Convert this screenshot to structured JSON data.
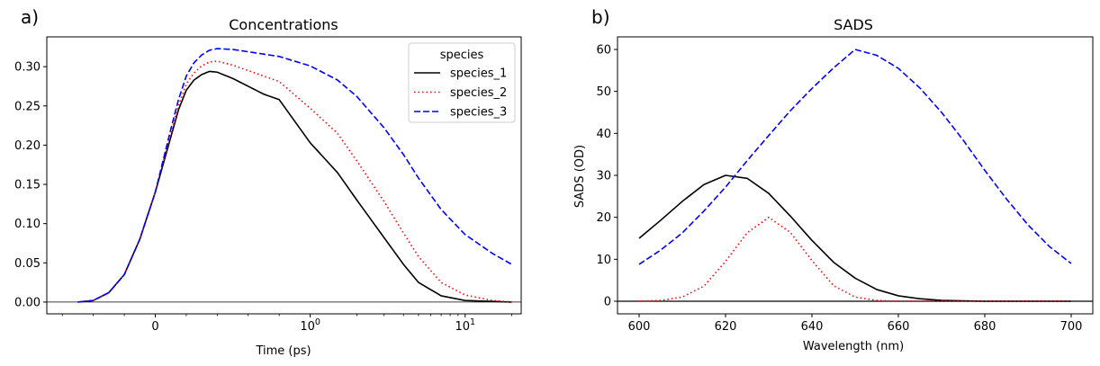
{
  "chart_data": [
    {
      "panel_label": "a)",
      "type": "line",
      "title": "Concentrations",
      "xlabel": "Time (ps)",
      "ylabel": "",
      "xscale": "symlog",
      "xlim": [
        -0.7,
        23
      ],
      "ylim": [
        -0.015,
        0.338
      ],
      "xticks": [
        {
          "value": 0,
          "label": "0"
        },
        {
          "value": 1,
          "label": "10",
          "sup": "0"
        },
        {
          "value": 10,
          "label": "10",
          "sup": "1"
        }
      ],
      "yticks": [
        0.0,
        0.05,
        0.1,
        0.15,
        0.2,
        0.25,
        0.3
      ],
      "ytick_labels": [
        "0.00",
        "0.05",
        "0.10",
        "0.15",
        "0.20",
        "0.25",
        "0.30"
      ],
      "grid": false,
      "zero_line": true,
      "legend": {
        "title": "species",
        "placement": "top-right"
      },
      "series": [
        {
          "name": "species_1",
          "color": "#000000",
          "linestyle": "solid",
          "points": [
            [
              -0.5,
              0.0
            ],
            [
              -0.4,
              0.002
            ],
            [
              -0.3,
              0.012
            ],
            [
              -0.2,
              0.035
            ],
            [
              -0.1,
              0.08
            ],
            [
              0.0,
              0.14
            ],
            [
              0.05,
              0.175
            ],
            [
              0.1,
              0.21
            ],
            [
              0.15,
              0.245
            ],
            [
              0.2,
              0.27
            ],
            [
              0.25,
              0.283
            ],
            [
              0.3,
              0.29
            ],
            [
              0.35,
              0.294
            ],
            [
              0.4,
              0.293
            ],
            [
              0.5,
              0.285
            ],
            [
              0.6,
              0.275
            ],
            [
              0.7,
              0.265
            ],
            [
              0.8,
              0.258
            ],
            [
              1.0,
              0.203
            ],
            [
              1.5,
              0.165
            ],
            [
              2.0,
              0.13
            ],
            [
              3.0,
              0.082
            ],
            [
              4.0,
              0.048
            ],
            [
              5.0,
              0.025
            ],
            [
              7.0,
              0.008
            ],
            [
              10.0,
              0.002
            ],
            [
              20.0,
              0.0
            ]
          ]
        },
        {
          "name": "species_2",
          "color": "#ff0000",
          "linestyle": "dotted",
          "points": [
            [
              -0.5,
              0.0
            ],
            [
              -0.4,
              0.002
            ],
            [
              -0.3,
              0.012
            ],
            [
              -0.2,
              0.035
            ],
            [
              -0.1,
              0.08
            ],
            [
              0.0,
              0.14
            ],
            [
              0.05,
              0.178
            ],
            [
              0.1,
              0.215
            ],
            [
              0.15,
              0.25
            ],
            [
              0.2,
              0.278
            ],
            [
              0.25,
              0.292
            ],
            [
              0.3,
              0.301
            ],
            [
              0.35,
              0.306
            ],
            [
              0.4,
              0.307
            ],
            [
              0.5,
              0.302
            ],
            [
              0.6,
              0.295
            ],
            [
              0.7,
              0.288
            ],
            [
              0.8,
              0.281
            ],
            [
              1.0,
              0.247
            ],
            [
              1.5,
              0.215
            ],
            [
              2.0,
              0.18
            ],
            [
              3.0,
              0.128
            ],
            [
              4.0,
              0.088
            ],
            [
              5.0,
              0.058
            ],
            [
              7.0,
              0.025
            ],
            [
              10.0,
              0.009
            ],
            [
              15.0,
              0.002
            ],
            [
              20.0,
              0.0
            ]
          ]
        },
        {
          "name": "species_3",
          "color": "#0000ff",
          "linestyle": "dashed",
          "points": [
            [
              -0.5,
              0.0
            ],
            [
              -0.4,
              0.002
            ],
            [
              -0.3,
              0.012
            ],
            [
              -0.2,
              0.035
            ],
            [
              -0.1,
              0.08
            ],
            [
              0.0,
              0.14
            ],
            [
              0.05,
              0.18
            ],
            [
              0.1,
              0.22
            ],
            [
              0.15,
              0.258
            ],
            [
              0.2,
              0.288
            ],
            [
              0.25,
              0.305
            ],
            [
              0.3,
              0.315
            ],
            [
              0.35,
              0.321
            ],
            [
              0.4,
              0.323
            ],
            [
              0.5,
              0.322
            ],
            [
              0.6,
              0.319
            ],
            [
              0.7,
              0.316
            ],
            [
              0.8,
              0.313
            ],
            [
              1.0,
              0.301
            ],
            [
              1.5,
              0.283
            ],
            [
              2.0,
              0.262
            ],
            [
              3.0,
              0.222
            ],
            [
              4.0,
              0.188
            ],
            [
              5.0,
              0.158
            ],
            [
              7.0,
              0.118
            ],
            [
              10.0,
              0.086
            ],
            [
              15.0,
              0.062
            ],
            [
              20.0,
              0.048
            ]
          ]
        }
      ]
    },
    {
      "panel_label": "b)",
      "type": "line",
      "title": "SADS",
      "xlabel": "Wavelength (nm)",
      "ylabel": "SADS (OD)",
      "xscale": "linear",
      "xlim": [
        595,
        705
      ],
      "ylim": [
        -3,
        63
      ],
      "xticks": [
        600,
        620,
        640,
        660,
        680,
        700
      ],
      "yticks": [
        0,
        10,
        20,
        30,
        40,
        50,
        60
      ],
      "grid": false,
      "zero_line": true,
      "series": [
        {
          "name": "species_1",
          "color": "#000000",
          "linestyle": "solid",
          "points": [
            [
              600,
              15.0
            ],
            [
              605,
              19.3
            ],
            [
              610,
              23.8
            ],
            [
              615,
              27.8
            ],
            [
              620,
              30.0
            ],
            [
              625,
              29.3
            ],
            [
              630,
              25.7
            ],
            [
              635,
              20.3
            ],
            [
              640,
              14.5
            ],
            [
              645,
              9.3
            ],
            [
              650,
              5.5
            ],
            [
              655,
              2.8
            ],
            [
              660,
              1.3
            ],
            [
              665,
              0.6
            ],
            [
              670,
              0.2
            ],
            [
              680,
              0.0
            ],
            [
              700,
              0.0
            ]
          ]
        },
        {
          "name": "species_2",
          "color": "#ff0000",
          "linestyle": "dotted",
          "points": [
            [
              600,
              0.0
            ],
            [
              605,
              0.2
            ],
            [
              610,
              1.0
            ],
            [
              615,
              3.6
            ],
            [
              620,
              9.5
            ],
            [
              625,
              16.3
            ],
            [
              630,
              20.0
            ],
            [
              635,
              16.4
            ],
            [
              640,
              9.7
            ],
            [
              645,
              3.7
            ],
            [
              650,
              1.0
            ],
            [
              655,
              0.2
            ],
            [
              660,
              0.0
            ],
            [
              700,
              0.0
            ]
          ]
        },
        {
          "name": "species_3",
          "color": "#0000ff",
          "linestyle": "dashed",
          "points": [
            [
              600,
              8.8
            ],
            [
              605,
              12.2
            ],
            [
              610,
              16.3
            ],
            [
              615,
              21.5
            ],
            [
              620,
              27.2
            ],
            [
              625,
              33.5
            ],
            [
              630,
              39.5
            ],
            [
              635,
              45.4
            ],
            [
              640,
              50.7
            ],
            [
              645,
              55.6
            ],
            [
              650,
              60.0
            ],
            [
              655,
              58.6
            ],
            [
              660,
              55.5
            ],
            [
              665,
              50.8
            ],
            [
              670,
              45.0
            ],
            [
              675,
              38.4
            ],
            [
              680,
              31.2
            ],
            [
              685,
              24.4
            ],
            [
              690,
              18.2
            ],
            [
              695,
              13.0
            ],
            [
              700,
              9.0
            ]
          ]
        }
      ]
    }
  ]
}
